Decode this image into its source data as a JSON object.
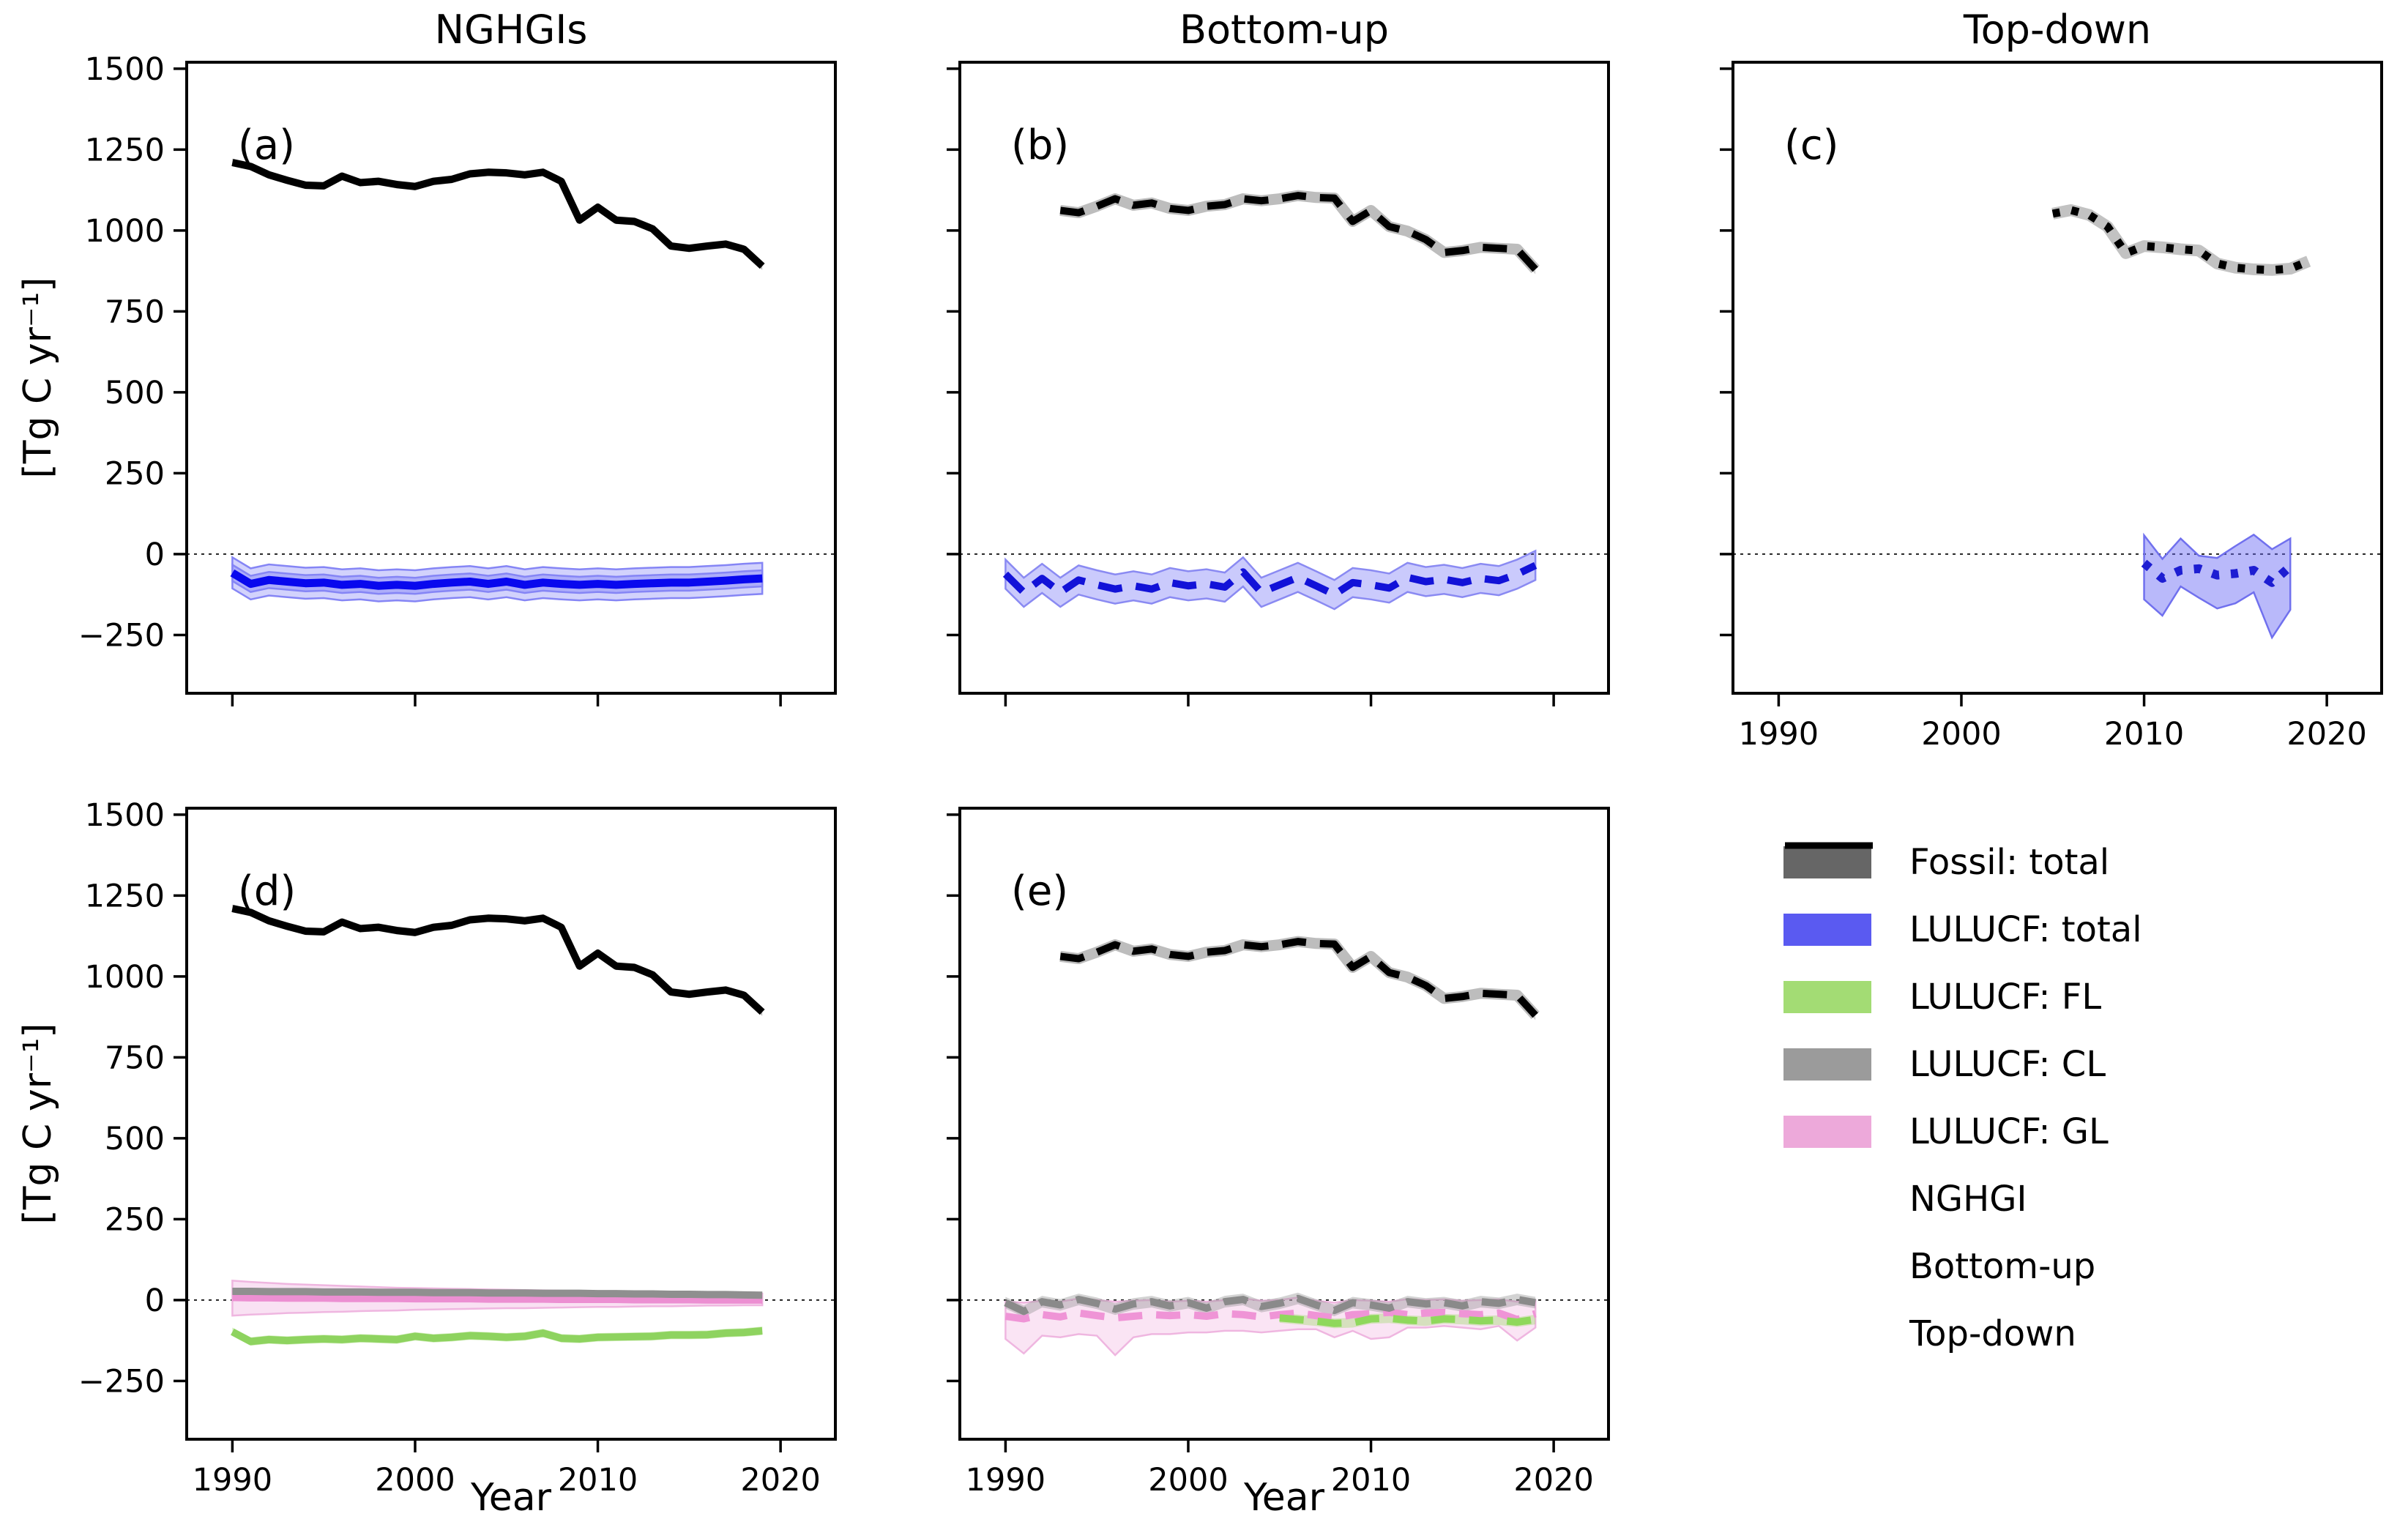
{
  "chart_data": {
    "type": "line",
    "xlabel": "Year",
    "ylabel": "[Tg C yr⁻¹]",
    "xlim": [
      1987.5,
      2023
    ],
    "ylim": [
      -430,
      1520
    ],
    "xticks": [
      1990,
      2000,
      2010,
      2020
    ],
    "xtick_labels": [
      "1990",
      "2000",
      "2010",
      "2020"
    ],
    "yticks": [
      -250,
      0,
      250,
      500,
      750,
      1000,
      1250,
      1500
    ],
    "ytick_labels": [
      "−250",
      "0",
      "250",
      "500",
      "750",
      "1000",
      "1250",
      "1500"
    ],
    "grid": false,
    "zero_line": true,
    "panels": [
      {
        "id": "a",
        "label": "(a)",
        "title": "NGHGIs",
        "col": 0,
        "row": 0,
        "show_x_tick_labels": false,
        "show_y_tick_labels": true,
        "series": [
          {
            "name": "fossil-total-nghgi",
            "legend": "Fossil: total",
            "method": "NGHGI",
            "linestyle": "solid",
            "color": "#000000",
            "width": 10,
            "year_start": 1990,
            "values": [
              1210,
              1198,
              1172,
              1155,
              1140,
              1138,
              1168,
              1148,
              1152,
              1142,
              1136,
              1152,
              1158,
              1175,
              1180,
              1178,
              1172,
              1180,
              1152,
              1032,
              1072,
              1032,
              1028,
              1005,
              952,
              945,
              952,
              958,
              942,
              890
            ],
            "bands": [
              {
                "half": 12,
                "color": "rgba(120,120,120,0.5)"
              }
            ]
          },
          {
            "name": "lulucf-total-nghgi",
            "legend": "LULUCF: total",
            "method": "NGHGI",
            "linestyle": "solid",
            "color": "#0808ee",
            "width": 11,
            "year_start": 1990,
            "values": [
              -58,
              -92,
              -80,
              -85,
              -90,
              -88,
              -95,
              -92,
              -98,
              -95,
              -98,
              -92,
              -88,
              -85,
              -92,
              -85,
              -95,
              -88,
              -92,
              -95,
              -92,
              -95,
              -92,
              -90,
              -88,
              -88,
              -85,
              -82,
              -78,
              -75
            ],
            "bands": [
              {
                "half": 48,
                "color": "rgba(80,80,245,0.26)",
                "edge": "#8585f5"
              },
              {
                "half": 25,
                "color": "rgba(80,80,245,0.28)",
                "edge": "#8585f5"
              }
            ]
          }
        ]
      },
      {
        "id": "b",
        "label": "(b)",
        "title": "Bottom-up",
        "col": 1,
        "row": 0,
        "show_x_tick_labels": false,
        "show_y_tick_labels": false,
        "series": [
          {
            "name": "fossil-total-bottom-up",
            "legend": "Fossil: total",
            "method": "Bottom-up",
            "linestyle": "dashed",
            "color": "#000000",
            "width": 10,
            "underlay": "#bdbdbd",
            "year_start": 1993,
            "values": [
              1062,
              1055,
              1075,
              1098,
              1078,
              1085,
              1068,
              1062,
              1075,
              1080,
              1098,
              1092,
              1098,
              1108,
              1102,
              1100,
              1028,
              1062,
              1012,
              998,
              972,
              932,
              938,
              948,
              945,
              942,
              880
            ],
            "bands": [
              {
                "half": 15,
                "color": "rgba(160,160,160,0.5)"
              }
            ]
          },
          {
            "name": "lulucf-total-bottom-up",
            "legend": "LULUCF: total",
            "method": "Bottom-up",
            "linestyle": "dashed",
            "color": "#1212d8",
            "width": 10,
            "year_start": 1990,
            "values": [
              -62,
              -118,
              -75,
              -118,
              -80,
              -95,
              -108,
              -98,
              -108,
              -88,
              -98,
              -92,
              -102,
              -55,
              -118,
              -95,
              -72,
              -98,
              -125,
              -88,
              -95,
              -105,
              -72,
              -85,
              -78,
              -88,
              -75,
              -82,
              -62,
              -35
            ],
            "bands": [
              {
                "half": 45,
                "color": "rgba(80,80,245,0.30)",
                "edge": "#8a8af2"
              }
            ]
          }
        ]
      },
      {
        "id": "c",
        "label": "(c)",
        "title": "Top-down",
        "col": 2,
        "row": 0,
        "show_x_tick_labels": true,
        "show_y_tick_labels": false,
        "series": [
          {
            "name": "fossil-total-top-down",
            "legend": "Fossil: total",
            "method": "Top-down",
            "linestyle": "dotted",
            "color": "#000000",
            "width": 11,
            "underlay": "#c2c2c2",
            "year_start": 2005,
            "values": [
              1052,
              1063,
              1048,
              1012,
              930,
              952,
              948,
              942,
              938,
              898,
              885,
              880,
              878,
              882,
              905
            ]
          },
          {
            "name": "lulucf-total-top-down",
            "legend": "LULUCF: total",
            "method": "Top-down",
            "linestyle": "dotted",
            "color": "#1d1dd2",
            "width": 12,
            "year_start": 2010,
            "values": [
              -28,
              -75,
              -50,
              -45,
              -65,
              -60,
              -50,
              -88,
              -38
            ],
            "bands": [
              {
                "hi": [
                  58,
                  -15,
                  48,
                  -5,
                  -12,
                  25,
                  60,
                  15,
                  48
                ],
                "lo": [
                  -140,
                  -190,
                  -100,
                  -135,
                  -168,
                  -152,
                  -118,
                  -258,
                  -172
                ],
                "color": "rgba(100,100,245,0.45)",
                "edge": "#7070ee"
              }
            ]
          }
        ]
      },
      {
        "id": "d",
        "label": "(d)",
        "title": "",
        "col": 0,
        "row": 1,
        "show_x_tick_labels": true,
        "show_y_tick_labels": true,
        "series": [
          {
            "name": "fossil-total-nghgi",
            "legend": "Fossil: total",
            "method": "NGHGI",
            "linestyle": "solid",
            "color": "#000000",
            "width": 10,
            "year_start": 1990,
            "values": [
              1210,
              1198,
              1172,
              1155,
              1140,
              1138,
              1168,
              1148,
              1152,
              1142,
              1136,
              1152,
              1158,
              1175,
              1180,
              1178,
              1172,
              1180,
              1152,
              1032,
              1072,
              1032,
              1028,
              1005,
              952,
              945,
              952,
              958,
              942,
              890
            ],
            "bands": [
              {
                "half": 12,
                "color": "rgba(120,120,120,0.5)"
              }
            ]
          },
          {
            "name": "lulucf-gl-nghgi",
            "legend": "LULUCF: GL",
            "method": "NGHGI",
            "linestyle": "solid",
            "color": "#ec8fd2",
            "width": 10,
            "year_start": 1990,
            "values": [
              8,
              7,
              7,
              6,
              6,
              6,
              5,
              5,
              5,
              5,
              4,
              4,
              4,
              4,
              3,
              3,
              3,
              3,
              2,
              2,
              2,
              2,
              1,
              1,
              1,
              1,
              0,
              0,
              0,
              0
            ],
            "bands": [
              {
                "hi": [
                  60,
                  56,
                  53,
                  50,
                  48,
                  46,
                  44,
                  42,
                  40,
                  38,
                  37,
                  36,
                  35,
                  34,
                  33,
                  32,
                  31,
                  30,
                  29,
                  28,
                  27,
                  26,
                  25,
                  24,
                  23,
                  22,
                  22,
                  21,
                  21,
                  20
                ],
                "lo": [
                  -48,
                  -45,
                  -43,
                  -40,
                  -39,
                  -37,
                  -36,
                  -34,
                  -33,
                  -32,
                  -30,
                  -29,
                  -28,
                  -27,
                  -26,
                  -25,
                  -25,
                  -24,
                  -23,
                  -22,
                  -21,
                  -21,
                  -20,
                  -19,
                  -19,
                  -18,
                  -17,
                  -17,
                  -16,
                  -16
                ],
                "color": "rgba(238,170,220,0.35)",
                "edge": "#efb6e0"
              }
            ]
          },
          {
            "name": "lulucf-cl-nghgi",
            "legend": "LULUCF: CL",
            "method": "NGHGI",
            "linestyle": "solid",
            "color": "#8f8f8f",
            "width": 10,
            "year_start": 1990,
            "values": [
              27,
              27,
              26,
              26,
              26,
              25,
              25,
              25,
              24,
              24,
              24,
              23,
              23,
              23,
              22,
              22,
              22,
              21,
              21,
              21,
              20,
              20,
              19,
              19,
              18,
              18,
              17,
              17,
              16,
              15
            ],
            "bands": [
              {
                "half": 9,
                "color": "rgba(140,140,140,0.45)"
              }
            ]
          },
          {
            "name": "lulucf-fl-nghgi",
            "legend": "LULUCF: FL",
            "method": "NGHGI",
            "linestyle": "solid",
            "color": "#8ed35f",
            "width": 10,
            "year_start": 1990,
            "values": [
              -98,
              -128,
              -122,
              -125,
              -122,
              -120,
              -122,
              -118,
              -120,
              -122,
              -112,
              -118,
              -115,
              -110,
              -112,
              -115,
              -112,
              -102,
              -118,
              -120,
              -115,
              -114,
              -113,
              -112,
              -108,
              -108,
              -107,
              -102,
              -100,
              -95
            ],
            "bands": [
              {
                "half": 13,
                "color": "rgba(160,218,110,0.45)"
              }
            ]
          }
        ]
      },
      {
        "id": "e",
        "label": "(e)",
        "title": "",
        "col": 1,
        "row": 1,
        "show_x_tick_labels": true,
        "show_y_tick_labels": false,
        "series": [
          {
            "name": "fossil-total-bottom-up",
            "legend": "Fossil: total",
            "method": "Bottom-up",
            "linestyle": "dashed",
            "color": "#000000",
            "width": 10,
            "underlay": "#bdbdbd",
            "year_start": 1993,
            "values": [
              1062,
              1055,
              1075,
              1098,
              1078,
              1085,
              1068,
              1062,
              1075,
              1080,
              1098,
              1092,
              1098,
              1108,
              1102,
              1100,
              1028,
              1062,
              1012,
              998,
              972,
              932,
              938,
              948,
              945,
              942,
              880
            ],
            "bands": [
              {
                "half": 15,
                "color": "rgba(160,160,160,0.5)"
              }
            ]
          },
          {
            "name": "lulucf-gl-bottom-up",
            "legend": "LULUCF: GL",
            "method": "Bottom-up",
            "linestyle": "dashed",
            "color": "#ef94d6",
            "width": 10,
            "year_start": 1990,
            "values": [
              -50,
              -58,
              -45,
              -52,
              -40,
              -48,
              -55,
              -50,
              -45,
              -48,
              -45,
              -50,
              -42,
              -45,
              -52,
              -45,
              -40,
              -48,
              -55,
              -45,
              -42,
              -38,
              -45,
              -40,
              -38,
              -42,
              -45,
              -40,
              -60,
              -42
            ],
            "bands": [
              {
                "hi": [
                  -5,
                  -8,
                  -2,
                  -5,
                  5,
                  0,
                  -5,
                  -2,
                  0,
                  -5,
                  -2,
                  -5,
                  0,
                  5,
                  -2,
                  0,
                  8,
                  -2,
                  -8,
                  0,
                  -2,
                  -5,
                  3,
                  0,
                  2,
                  -2,
                  0,
                  2,
                  -5,
                  0
                ],
                "lo": [
                  -120,
                  -165,
                  -110,
                  -115,
                  -105,
                  -110,
                  -170,
                  -115,
                  -105,
                  -105,
                  -100,
                  -100,
                  -95,
                  -95,
                  -100,
                  -95,
                  -90,
                  -90,
                  -115,
                  -95,
                  -120,
                  -115,
                  -85,
                  -85,
                  -80,
                  -85,
                  -90,
                  -80,
                  -125,
                  -85
                ],
                "color": "rgba(238,170,220,0.32)",
                "edge": "#efb6e0"
              }
            ]
          },
          {
            "name": "lulucf-cl-bottom-up",
            "legend": "LULUCF: CL",
            "method": "Bottom-up",
            "linestyle": "dashed",
            "color": "#8a8a8a",
            "width": 10,
            "year_start": 1990,
            "values": [
              -8,
              -35,
              -5,
              -15,
              2,
              -10,
              -28,
              -12,
              -5,
              -18,
              -8,
              -25,
              -5,
              2,
              -20,
              -10,
              5,
              -15,
              -32,
              -8,
              -15,
              -25,
              -5,
              -12,
              -8,
              -18,
              -5,
              -10,
              2,
              -8
            ],
            "bands": [
              {
                "half": 18,
                "color": "rgba(150,150,150,0.42)"
              }
            ]
          },
          {
            "name": "lulucf-fl-bottom-up",
            "legend": "LULUCF: FL",
            "method": "Bottom-up",
            "linestyle": "dashed",
            "color": "#8fd85c",
            "width": 10,
            "year_start": 2005,
            "values": [
              -55,
              -60,
              -65,
              -72,
              -70,
              -58,
              -56,
              -62,
              -65,
              -58,
              -60,
              -64,
              -62,
              -68,
              -60
            ],
            "bands": [
              {
                "half": 15,
                "color": "rgba(160,218,110,0.40)"
              }
            ]
          }
        ]
      }
    ],
    "legend": {
      "items": [
        {
          "type": "patch",
          "color": "#666666",
          "label": "Fossil: total"
        },
        {
          "type": "patch",
          "color": "#5a5af1",
          "label": "LULUCF: total"
        },
        {
          "type": "patch",
          "color": "#a3dc74",
          "label": "LULUCF: FL"
        },
        {
          "type": "patch",
          "color": "#9b9b9b",
          "label": "LULUCF: CL"
        },
        {
          "type": "patch",
          "color": "#eda9da",
          "label": "LULUCF: GL"
        },
        {
          "type": "line",
          "linestyle": "solid",
          "color": "#000000",
          "label": "NGHGI"
        },
        {
          "type": "line",
          "linestyle": "dashed",
          "color": "#000000",
          "label": "Bottom-up"
        },
        {
          "type": "line",
          "linestyle": "dotted",
          "color": "#000000",
          "label": "Top-down"
        }
      ]
    }
  }
}
